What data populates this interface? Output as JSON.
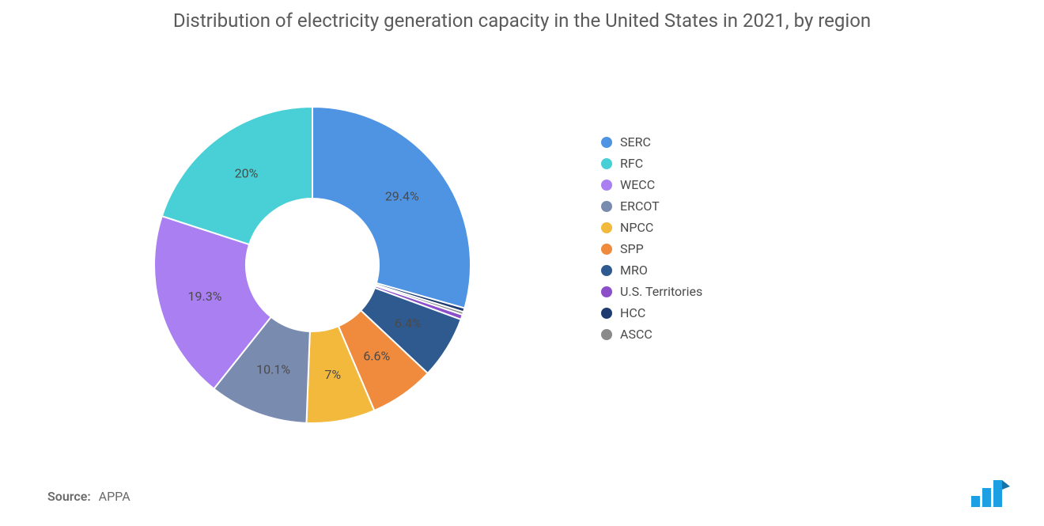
{
  "title": "Distribution of electricity generation capacity in the United States in 2021, by region",
  "source_label": "Source:",
  "source_value": "APPA",
  "chart": {
    "type": "donut",
    "inner_radius_ratio": 0.42,
    "background_color": "#ffffff",
    "stroke_color": "#ffffff",
    "stroke_width": 2,
    "start_angle_deg": -90,
    "direction": "clockwise",
    "label_fontsize": 16,
    "label_color": "#4a4a4a",
    "title_fontsize": 24,
    "title_color": "#5a5a5a",
    "slices": [
      {
        "name": "SERC",
        "value": 29.4,
        "color": "#4f94e3",
        "label": "29.4%",
        "show_label": true
      },
      {
        "name": "HCC",
        "value": 0.4,
        "color": "#1f3b70",
        "label": "",
        "show_label": false
      },
      {
        "name": "ASCC",
        "value": 0.3,
        "color": "#8a8a8a",
        "label": "",
        "show_label": false
      },
      {
        "name": "U.S. Territories",
        "value": 0.5,
        "color": "#8a4fc9",
        "label": "",
        "show_label": false
      },
      {
        "name": "MRO",
        "value": 6.4,
        "color": "#2f5a8f",
        "label": "6.4%",
        "show_label": true
      },
      {
        "name": "SPP",
        "value": 6.6,
        "color": "#f08a3c",
        "label": "6.6%",
        "show_label": true
      },
      {
        "name": "NPCC",
        "value": 7.0,
        "color": "#f2b93c",
        "label": "7%",
        "show_label": true
      },
      {
        "name": "ERCOT",
        "value": 10.1,
        "color": "#7a8bb0",
        "label": "10.1%",
        "show_label": true
      },
      {
        "name": "WECC",
        "value": 19.3,
        "color": "#a97ff2",
        "label": "19.3%",
        "show_label": true
      },
      {
        "name": "RFC",
        "value": 20.0,
        "color": "#49d0d6",
        "label": "20%",
        "show_label": true
      }
    ]
  },
  "legend": {
    "fontsize": 16,
    "text_color": "#4a4a4a",
    "items": [
      {
        "label": "SERC",
        "color": "#4f94e3"
      },
      {
        "label": "RFC",
        "color": "#49d0d6"
      },
      {
        "label": "WECC",
        "color": "#a97ff2"
      },
      {
        "label": "ERCOT",
        "color": "#7a8bb0"
      },
      {
        "label": "NPCC",
        "color": "#f2b93c"
      },
      {
        "label": "SPP",
        "color": "#f08a3c"
      },
      {
        "label": "MRO",
        "color": "#2f5a8f"
      },
      {
        "label": "U.S. Territories",
        "color": "#8a4fc9"
      },
      {
        "label": "HCC",
        "color": "#1f3b70"
      },
      {
        "label": "ASCC",
        "color": "#8a8a8a"
      }
    ]
  },
  "logo": {
    "bar_color": "#1da0e3",
    "fold_color": "#1672a8"
  }
}
